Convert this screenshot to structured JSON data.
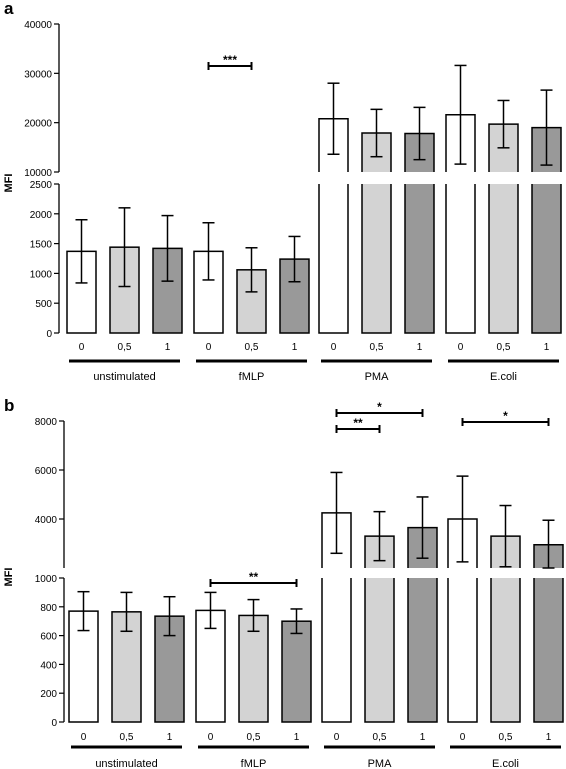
{
  "chart_data": [
    {
      "panel_label": "a",
      "type": "bar",
      "ylabel": "MFI",
      "y_axis_break": true,
      "ylim_lower": [
        0,
        2500
      ],
      "ylim_upper": [
        10000,
        40000
      ],
      "yticks_lower": [
        "0",
        "500",
        "1000",
        "1500",
        "2000",
        "2500"
      ],
      "yticks_upper": [
        "10000",
        "20000",
        "30000",
        "40000"
      ],
      "groups": [
        {
          "name": "unstimulated",
          "categories": [
            "0",
            "0,5",
            "1"
          ],
          "values": [
            1370,
            1440,
            1420
          ],
          "errors": [
            530,
            660,
            550
          ]
        },
        {
          "name": "fMLP",
          "categories": [
            "0",
            "0,5",
            "1"
          ],
          "values": [
            1370,
            1060,
            1240
          ],
          "errors": [
            480,
            370,
            380
          ]
        },
        {
          "name": "PMA",
          "categories": [
            "0",
            "0,5",
            "1"
          ],
          "values": [
            20800,
            17900,
            17800
          ],
          "errors": [
            7200,
            4800,
            5300
          ]
        },
        {
          "name": "E.coli",
          "categories": [
            "0",
            "0,5",
            "1"
          ],
          "values": [
            21600,
            19700,
            19000
          ],
          "errors": [
            10000,
            4800,
            7600
          ]
        }
      ],
      "significance": [
        {
          "label": "***",
          "group": "fMLP",
          "from": "0",
          "to": "0,5",
          "y": 30000
        }
      ],
      "grid": false,
      "bar_colors": [
        "#ffffff",
        "#d3d3d3",
        "#999999"
      ]
    },
    {
      "panel_label": "b",
      "type": "bar",
      "ylabel": "MFI",
      "y_axis_break": true,
      "ylim_lower": [
        0,
        1000
      ],
      "ylim_upper": [
        2000,
        8000
      ],
      "yticks_lower": [
        "0",
        "200",
        "400",
        "600",
        "800",
        "1000"
      ],
      "yticks_upper": [
        "4000",
        "6000",
        "8000"
      ],
      "groups": [
        {
          "name": "unstimulated",
          "categories": [
            "0",
            "0,5",
            "1"
          ],
          "values": [
            770,
            765,
            735
          ],
          "errors": [
            135,
            135,
            135
          ]
        },
        {
          "name": "fMLP",
          "categories": [
            "0",
            "0,5",
            "1"
          ],
          "values": [
            775,
            740,
            700
          ],
          "errors": [
            125,
            110,
            85
          ]
        },
        {
          "name": "PMA",
          "categories": [
            "0",
            "0,5",
            "1"
          ],
          "values": [
            4250,
            3300,
            3650
          ],
          "errors": [
            1650,
            1000,
            1250
          ]
        },
        {
          "name": "E.coli",
          "categories": [
            "0",
            "0,5",
            "1"
          ],
          "values": [
            4000,
            3300,
            2950
          ],
          "errors": [
            1750,
            1250,
            1000
          ]
        }
      ],
      "significance": [
        {
          "label": "*",
          "group": "PMA",
          "from": "0",
          "to": "1",
          "y": 8000
        },
        {
          "label": "**",
          "group": "PMA",
          "from": "0",
          "to": "0,5",
          "y": 7500
        },
        {
          "label": "*",
          "group": "E.coli",
          "from": "0",
          "to": "1",
          "y": 7800
        },
        {
          "label": "**",
          "group": "fMLP",
          "from": "0",
          "to": "1",
          "y": 925
        }
      ],
      "grid": false,
      "bar_colors": [
        "#ffffff",
        "#d3d3d3",
        "#999999"
      ]
    }
  ]
}
